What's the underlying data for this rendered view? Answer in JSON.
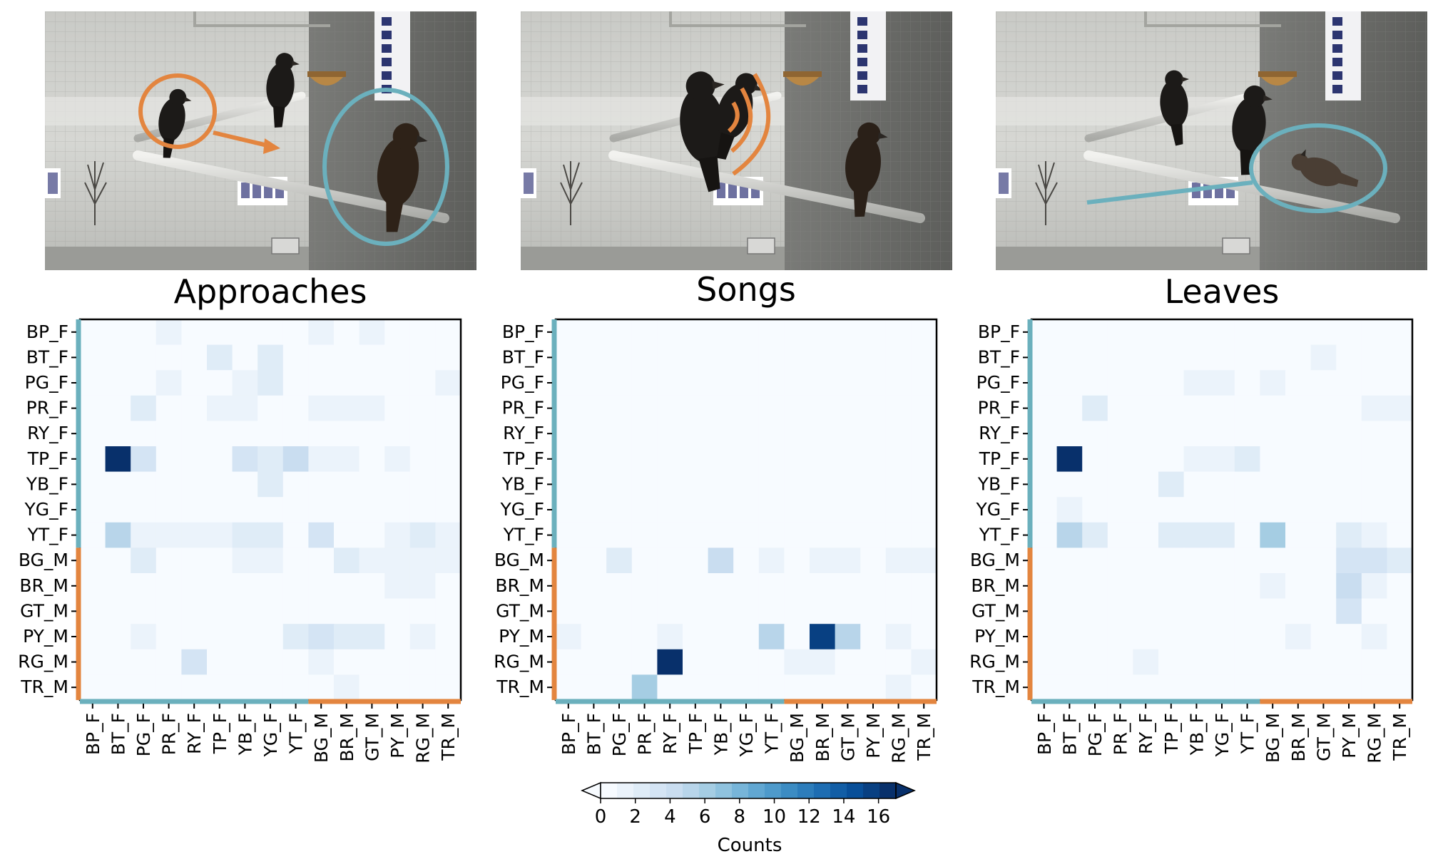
{
  "figure": {
    "colorbar": {
      "label": "Counts",
      "ticks": [
        0,
        2,
        4,
        6,
        8,
        10,
        12,
        14,
        16
      ],
      "levels": 18,
      "min": 0,
      "max": 17,
      "extend": "both",
      "colormap_stops": [
        "#f7fbff",
        "#deebf7",
        "#c6dbef",
        "#9ecae1",
        "#6baed6",
        "#4292c6",
        "#2171b5",
        "#08519c",
        "#08306b"
      ]
    },
    "group_colors": {
      "female": "#6bb0bd",
      "male": "#e3853f"
    },
    "photo_marks": [
      {
        "panel": "approaches",
        "description": "orange circle on approaching bird, arrow toward teal-circled bird"
      },
      {
        "panel": "songs",
        "description": "orange sound arcs on singing bird"
      },
      {
        "panel": "leaves",
        "description": "teal ellipse on bird leaving, teal line trailing"
      }
    ]
  },
  "chart_data": [
    {
      "type": "heatmap",
      "title": "Approaches",
      "row_labels": [
        "BP_F",
        "BT_F",
        "PG_F",
        "PR_F",
        "RY_F",
        "TP_F",
        "YB_F",
        "YG_F",
        "YT_F",
        "BG_M",
        "BR_M",
        "GT_M",
        "PY_M",
        "RG_M",
        "TR_M"
      ],
      "col_labels": [
        "BP_F",
        "BT_F",
        "PG_F",
        "PR_F",
        "RY_F",
        "TP_F",
        "YB_F",
        "YG_F",
        "YT_F",
        "BG_M",
        "BR_M",
        "GT_M",
        "PY_M",
        "RG_M",
        "TR_M"
      ],
      "values": [
        [
          0.6,
          0.2,
          0.3,
          1.2,
          0.6,
          0.3,
          0.6,
          0.2,
          0.3,
          1.4,
          0.5,
          1.3,
          0.3,
          0.7,
          0.3
        ],
        [
          0.2,
          0.3,
          0.7,
          0.2,
          0.6,
          2.0,
          0.4,
          2.0,
          0.3,
          0.2,
          0.2,
          0.3,
          0.2,
          0.6,
          0.2
        ],
        [
          0.2,
          0.9,
          0.3,
          1.5,
          0.2,
          0.2,
          1.8,
          2.2,
          0.6,
          0.2,
          0.2,
          0.2,
          0.2,
          0.3,
          1.0
        ],
        [
          0.9,
          0.3,
          2.3,
          0.2,
          0.6,
          1.2,
          1.2,
          0.7,
          0.3,
          1.2,
          1.3,
          1.3,
          0.7,
          0.2,
          0.6
        ],
        [
          0.2,
          0.2,
          0.2,
          0.4,
          0.2,
          0.2,
          0.2,
          0.2,
          0.2,
          0.2,
          0.2,
          0.3,
          0.3,
          0.2,
          0.2
        ],
        [
          0.2,
          17,
          3.5,
          0.6,
          0.7,
          0.2,
          3.5,
          2.5,
          4.2,
          1.0,
          1.0,
          0.4,
          1.0,
          0.9,
          0.2
        ],
        [
          0.2,
          0.8,
          0.5,
          0.2,
          0.3,
          0.8,
          0.3,
          2.0,
          0.7,
          0.7,
          0.2,
          0.2,
          0.2,
          0.2,
          0.2
        ],
        [
          0.2,
          0.9,
          0.2,
          0.2,
          0.3,
          0.2,
          0.2,
          0.2,
          0.2,
          0.2,
          0.2,
          0.2,
          0.2,
          0.2,
          0.2
        ],
        [
          0.7,
          5.0,
          1.8,
          1.0,
          1.1,
          1.7,
          2.3,
          2.0,
          0.3,
          3.5,
          0.6,
          0.9,
          1.2,
          2.0,
          1.0
        ],
        [
          0.2,
          0.2,
          2.5,
          0.7,
          0.3,
          0.8,
          1.2,
          1.0,
          0.6,
          0.3,
          2.5,
          1.2,
          1.6,
          1.8,
          1.3
        ],
        [
          0.2,
          0.2,
          0.2,
          0.3,
          0.8,
          0.2,
          0.5,
          0.2,
          0.2,
          0.2,
          0.3,
          0.6,
          1.3,
          1.8,
          0.6
        ],
        [
          0.6,
          0.6,
          0.7,
          0.3,
          0.6,
          0.2,
          0.5,
          0.7,
          0.3,
          0.2,
          0.3,
          0.7,
          0.6,
          0.7,
          0.2
        ],
        [
          0.7,
          0.2,
          1.0,
          0.8,
          0.6,
          0.3,
          0.6,
          0.8,
          2.5,
          3.0,
          2.5,
          2.0,
          0.3,
          1.3,
          0.4
        ],
        [
          0.2,
          0.2,
          0.3,
          0.6,
          3.5,
          0.2,
          0.5,
          0.6,
          0.7,
          1.0,
          0.7,
          0.5,
          0.6,
          0.3,
          0.5
        ],
        [
          0.2,
          0.9,
          0.3,
          0.8,
          0.2,
          0.5,
          0.2,
          0.2,
          0.3,
          0.7,
          1.0,
          0.3,
          0.3,
          0.3,
          0.2
        ]
      ],
      "ylim": [
        0,
        17
      ]
    },
    {
      "type": "heatmap",
      "title": "Songs",
      "row_labels": [
        "BP_F",
        "BT_F",
        "PG_F",
        "PR_F",
        "RY_F",
        "TP_F",
        "YB_F",
        "YG_F",
        "YT_F",
        "BG_M",
        "BR_M",
        "GT_M",
        "PY_M",
        "RG_M",
        "TR_M"
      ],
      "col_labels": [
        "BP_F",
        "BT_F",
        "PG_F",
        "PR_F",
        "RY_F",
        "TP_F",
        "YB_F",
        "YG_F",
        "YT_F",
        "BG_M",
        "BR_M",
        "GT_M",
        "PY_M",
        "RG_M",
        "TR_M"
      ],
      "values": [
        [
          0,
          0,
          0,
          0,
          0,
          0,
          0,
          0,
          0,
          0,
          0,
          0,
          0,
          0,
          0
        ],
        [
          0,
          0,
          0,
          0,
          0,
          0,
          0,
          0,
          0,
          0,
          0,
          0,
          0,
          0,
          0
        ],
        [
          0,
          0,
          0,
          0,
          0,
          0,
          0,
          0,
          0,
          0,
          0,
          0,
          0,
          0,
          0
        ],
        [
          0,
          0,
          0,
          0,
          0,
          0,
          0,
          0,
          0,
          0,
          0,
          0,
          0,
          0,
          0
        ],
        [
          0,
          0,
          0,
          0,
          0,
          0,
          0,
          0,
          0,
          0,
          0,
          0,
          0,
          0,
          0
        ],
        [
          0,
          0,
          0,
          0,
          0,
          0,
          0,
          0,
          0,
          0,
          0,
          0,
          0,
          0,
          0
        ],
        [
          0,
          0,
          0,
          0,
          0,
          0,
          0,
          0,
          0,
          0,
          0,
          0,
          0,
          0,
          0
        ],
        [
          0,
          0,
          0,
          0,
          0,
          0,
          0,
          0,
          0,
          0,
          0,
          0,
          0,
          0,
          0
        ],
        [
          0,
          0,
          0,
          0,
          0,
          0,
          0,
          0,
          0,
          0,
          0,
          0,
          0,
          0,
          0
        ],
        [
          0,
          0,
          2.2,
          0,
          0,
          0.8,
          4.5,
          0.5,
          1.2,
          0,
          1.5,
          1.8,
          0,
          1.0,
          1.0
        ],
        [
          0,
          0,
          0,
          0,
          0,
          0.2,
          0,
          0,
          0,
          0,
          0,
          0,
          0,
          0.5,
          0
        ],
        [
          0,
          0,
          0,
          0.3,
          0.3,
          0,
          0,
          0.3,
          0.8,
          0.8,
          0,
          0,
          0,
          0,
          0
        ],
        [
          1.8,
          0,
          0.4,
          0.2,
          1.8,
          0.3,
          0.3,
          0.2,
          5.0,
          0.2,
          16,
          5.5,
          0.2,
          1.5,
          0
        ],
        [
          0,
          0,
          0,
          0,
          17,
          0,
          0,
          0.6,
          0.6,
          1.0,
          1.3,
          0.8,
          0.3,
          0,
          1.5
        ],
        [
          0.4,
          0.3,
          0.2,
          6.5,
          0,
          0.3,
          0.5,
          0.3,
          0.5,
          0.7,
          0.5,
          0.8,
          0.3,
          1.5,
          0.3
        ]
      ],
      "ylim": [
        0,
        17
      ]
    },
    {
      "type": "heatmap",
      "title": "Leaves",
      "row_labels": [
        "BP_F",
        "BT_F",
        "PG_F",
        "PR_F",
        "RY_F",
        "TP_F",
        "YB_F",
        "YG_F",
        "YT_F",
        "BG_M",
        "BR_M",
        "GT_M",
        "PY_M",
        "RG_M",
        "TR_M"
      ],
      "col_labels": [
        "BP_F",
        "BT_F",
        "PG_F",
        "PR_F",
        "RY_F",
        "TP_F",
        "YB_F",
        "YG_F",
        "YT_F",
        "BG_M",
        "BR_M",
        "GT_M",
        "PY_M",
        "RG_M",
        "TR_M"
      ],
      "values": [
        [
          0.2,
          0.3,
          0.2,
          0.6,
          0.2,
          0.2,
          0.2,
          0.2,
          0.2,
          0.9,
          0.3,
          0.2,
          0.2,
          0.6,
          0.2
        ],
        [
          0.2,
          0.2,
          0.9,
          0.2,
          0.2,
          0.7,
          0.6,
          0.6,
          0.5,
          0.2,
          0.2,
          1.3,
          0.2,
          0.3,
          0.9
        ],
        [
          0.2,
          0.6,
          0.3,
          0.2,
          0.2,
          0.6,
          1.3,
          1.3,
          0.5,
          1.5,
          0.2,
          0.2,
          0.2,
          0.2,
          0.5
        ],
        [
          0.2,
          0.3,
          2.5,
          0.2,
          0.6,
          0.6,
          0.6,
          0.2,
          0.2,
          0.6,
          0.5,
          0.5,
          0.5,
          1.0,
          1.8
        ],
        [
          0.2,
          0.2,
          0.2,
          0.3,
          0.2,
          0.2,
          0.2,
          0.2,
          0.2,
          0.2,
          0.2,
          0.2,
          0.2,
          0.9,
          0.2
        ],
        [
          0.2,
          17,
          0.9,
          0.6,
          0.6,
          0.2,
          1.3,
          1.5,
          2.8,
          0.9,
          0.6,
          0.6,
          0.5,
          0.6,
          0.9
        ],
        [
          0.2,
          0.3,
          0.7,
          0.6,
          0.3,
          2.5,
          0.3,
          0.6,
          0.6,
          0.9,
          0.2,
          0.2,
          0.9,
          0.2,
          0.2
        ],
        [
          0.2,
          1.5,
          0.2,
          0.2,
          0.2,
          0.2,
          0.2,
          0.2,
          0.2,
          0.2,
          0.2,
          0.5,
          0.2,
          0.2,
          0.2
        ],
        [
          0.2,
          5.5,
          2.5,
          0.9,
          0.5,
          2.2,
          2.2,
          2.0,
          0.5,
          6.5,
          0.3,
          0.6,
          2.2,
          1.0,
          0.8
        ],
        [
          0.2,
          0.3,
          0.6,
          0.3,
          0.5,
          0.6,
          0.6,
          0.2,
          0.3,
          0.5,
          0.9,
          0.5,
          3.0,
          3.0,
          2.0
        ],
        [
          0.2,
          0.2,
          0.2,
          0.2,
          0.2,
          0.2,
          0.2,
          0.2,
          0.2,
          1.3,
          0.2,
          0.2,
          4.5,
          1.5,
          0.9
        ],
        [
          0.5,
          0.2,
          0.2,
          0.4,
          0.2,
          0.2,
          0.5,
          0.2,
          0.2,
          0.9,
          0.3,
          0.2,
          3.0,
          0.6,
          0.6
        ],
        [
          0.3,
          0.2,
          0.6,
          0.6,
          0.6,
          0.6,
          0.6,
          0.3,
          0.9,
          0.6,
          1.8,
          0.6,
          0.2,
          1.3,
          0.3
        ],
        [
          0.2,
          0.2,
          0.3,
          0.2,
          1.2,
          0.2,
          0.2,
          0.2,
          0.2,
          0.3,
          0.2,
          0.2,
          0.2,
          0.2,
          0.2
        ],
        [
          0.2,
          0.6,
          0.2,
          0.6,
          0.2,
          0.2,
          0.2,
          0.2,
          0.2,
          0.2,
          0.2,
          0.2,
          0.2,
          0.2,
          0.2
        ]
      ],
      "ylim": [
        0,
        17
      ]
    }
  ]
}
